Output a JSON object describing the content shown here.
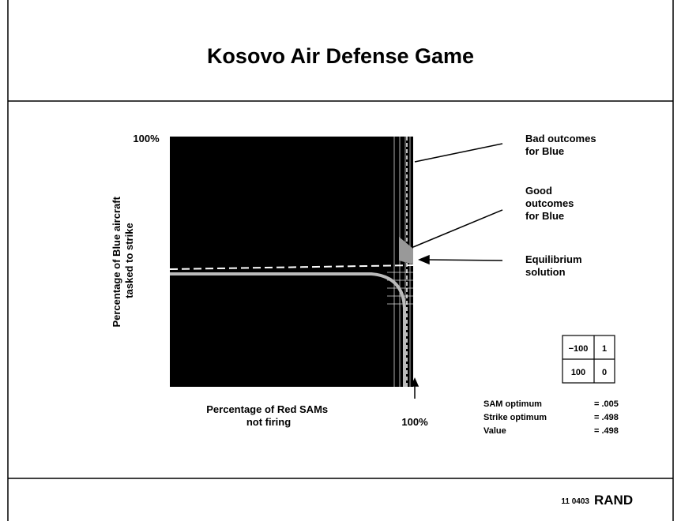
{
  "header": {
    "title": "Kosovo Air Defense Game"
  },
  "plot": {
    "y_axis_label": [
      "Percentage of Blue aircraft",
      "tasked to strike"
    ],
    "y_top_label": "100%",
    "x_axis_label": [
      "Percentage of Red SAMs",
      "not firing"
    ],
    "x_right_label": "100%"
  },
  "annotations": [
    {
      "lines": [
        "Bad outcomes",
        "for Blue"
      ]
    },
    {
      "lines": [
        "Good",
        "outcomes",
        "for Blue"
      ]
    },
    {
      "lines": [
        "Equilibrium",
        "solution"
      ]
    }
  ],
  "payoff_matrix": {
    "rows": [
      [
        "−100",
        "1"
      ],
      [
        "100",
        "0"
      ]
    ]
  },
  "results": [
    {
      "label": "SAM optimum",
      "value": "= .005"
    },
    {
      "label": "Strike optimum",
      "value": "= .498"
    },
    {
      "label": "Value",
      "value": "= .498"
    }
  ],
  "footer": {
    "code": "11 0403",
    "brand": "RAND"
  }
}
